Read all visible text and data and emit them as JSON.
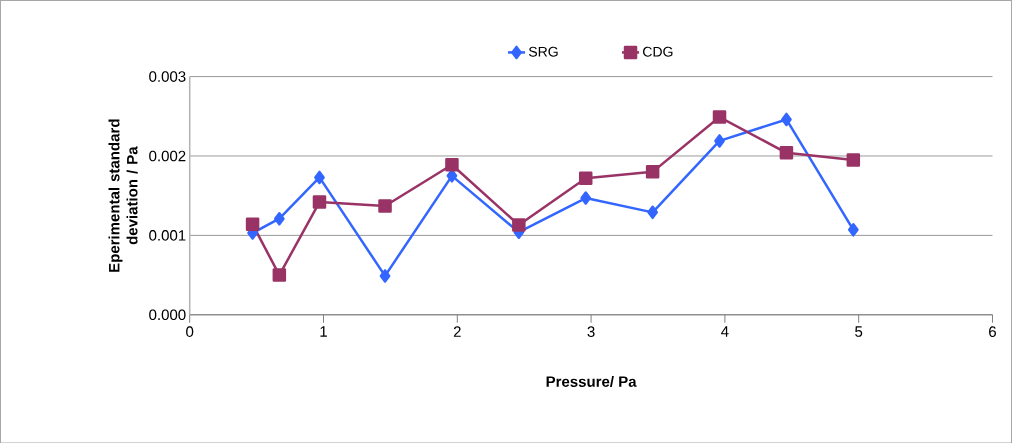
{
  "chart_data": {
    "type": "line",
    "xlabel": "Pressure/ Pa",
    "ylabel": "Eperimental standard deviation / Pa",
    "x": [
      0.47,
      0.67,
      0.97,
      1.46,
      1.96,
      2.46,
      2.96,
      3.46,
      3.96,
      4.46,
      4.96
    ],
    "series": [
      {
        "name": "SRG",
        "color": "#3366ff",
        "marker": "diamond",
        "values": [
          0.00103,
          0.00121,
          0.00173,
          0.00049,
          0.00175,
          0.00104,
          0.00147,
          0.00129,
          0.00219,
          0.00246,
          0.00107
        ]
      },
      {
        "name": "CDG",
        "color": "#993366",
        "marker": "square",
        "values": [
          0.00114,
          0.0005,
          0.00142,
          0.00137,
          0.00189,
          0.00113,
          0.00172,
          0.0018,
          0.00249,
          0.00204,
          0.00195
        ]
      }
    ],
    "xlim": [
      0,
      6
    ],
    "ylim": [
      0,
      0.003
    ],
    "xticks": [
      0,
      1,
      2,
      3,
      4,
      5,
      6
    ],
    "yticks": [
      {
        "value": 0,
        "label": "0.000"
      },
      {
        "value": 0.001,
        "label": "0.001"
      },
      {
        "value": 0.002,
        "label": "0.002"
      },
      {
        "value": 0.003,
        "label": "0.003"
      }
    ],
    "grid": "y",
    "legend": "top",
    "line_style": "solid"
  }
}
